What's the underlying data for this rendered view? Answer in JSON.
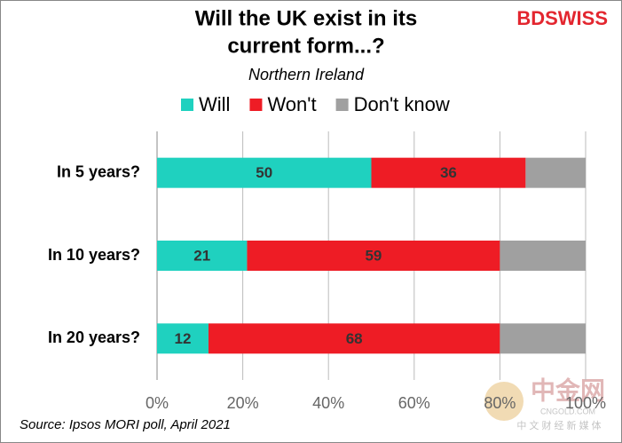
{
  "chart_data": {
    "type": "stacked-bar-horizontal",
    "title": [
      "Will the UK exist in its",
      "current form...?"
    ],
    "subtitle": "Northern Ireland",
    "logo": "BDSWISS",
    "watermark": [
      "中金网",
      "CNGOLD.COM",
      "中 文 财 经 新 媒 体"
    ],
    "source": "Source: Ipsos MORI poll, April 2021",
    "categories": [
      "In 5 years?",
      "In 10 years?",
      "In 20 years?"
    ],
    "series": [
      {
        "name": "Will",
        "color": "#1fd1bf",
        "values": [
          50,
          21,
          12
        ],
        "data_labels": true
      },
      {
        "name": "Won't",
        "color": "#ee1c25",
        "values": [
          36,
          59,
          68
        ],
        "data_labels": true
      },
      {
        "name": "Don't know",
        "color": "#a0a0a0",
        "values": [
          14,
          20,
          20
        ],
        "data_labels": false
      }
    ],
    "xlim": [
      0,
      100
    ],
    "xticks": [
      {
        "value": 0,
        "label": "0%"
      },
      {
        "value": 20,
        "label": "20%"
      },
      {
        "value": 40,
        "label": "40%"
      },
      {
        "value": 60,
        "label": "60%"
      },
      {
        "value": 80,
        "label": "80%"
      },
      {
        "value": 100,
        "label": "100%"
      }
    ],
    "grid": true,
    "legend": "top"
  }
}
